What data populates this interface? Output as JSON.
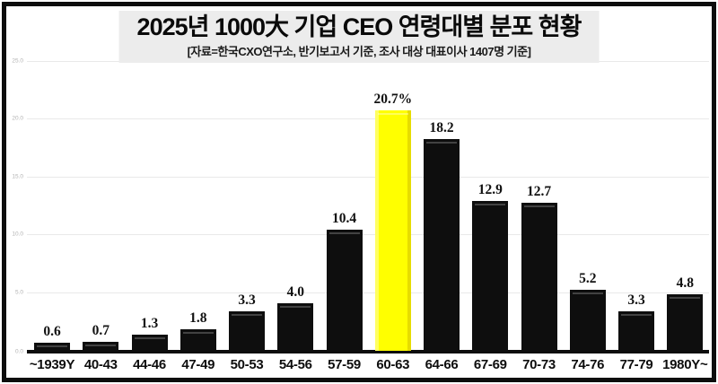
{
  "header": {
    "title": "2025년 1000大 기업 CEO 연령대별 분포 현황",
    "subtitle": "[자료=한국CXO연구소, 반기보고서 기준, 조사 대상 대표이사 1407명 기준]"
  },
  "colors": {
    "bar": "#0e0e0e",
    "highlight_bar": "#ffff00",
    "frame": "#0d0d0d",
    "gridline": "#e9e9e9",
    "title_panel_bg": "#ececec",
    "ytick_text": "#b3b3b3"
  },
  "chart_data": {
    "type": "bar",
    "title": "2025년 1000大 기업 CEO 연령대별 분포 현황",
    "subtitle": "[자료=한국CXO연구소, 반기보고서 기준, 조사 대상 대표이사 1407명 기준]",
    "categories": [
      "~1939Y",
      "40-43",
      "44-46",
      "47-49",
      "50-53",
      "54-56",
      "57-59",
      "60-63",
      "64-66",
      "67-69",
      "70-73",
      "74-76",
      "77-79",
      "1980Y~"
    ],
    "values": [
      0.6,
      0.7,
      1.3,
      1.8,
      3.3,
      4.0,
      10.4,
      20.7,
      18.2,
      12.9,
      12.7,
      5.2,
      3.3,
      4.8
    ],
    "value_labels": [
      "0.6",
      "0.7",
      "1.3",
      "1.8",
      "3.3",
      "4.0",
      "10.4",
      "20.7%",
      "18.2",
      "12.9",
      "12.7",
      "5.2",
      "3.3",
      "4.8"
    ],
    "highlight_index": 7,
    "unit": "%",
    "xlabel": "",
    "ylabel": "",
    "y_tick_labels": [
      "25.0",
      "20.0",
      "15.0",
      "10.0",
      "5.0",
      "0.0"
    ],
    "ylim": [
      0,
      25
    ],
    "grid": true,
    "legend_position": "none"
  }
}
